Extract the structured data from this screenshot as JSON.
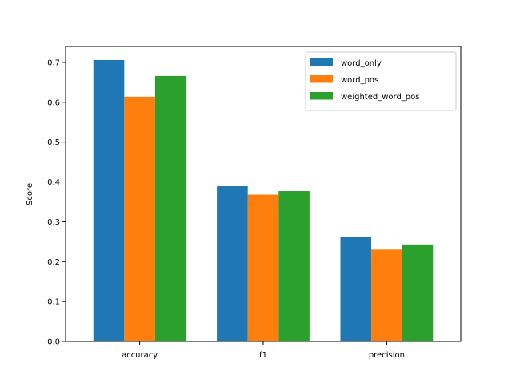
{
  "colors": {
    "series": [
      "#1f77b4",
      "#ff7f0e",
      "#2ca02c"
    ],
    "axes": "#000000",
    "background": "#ffffff",
    "legend_border": "#cccccc"
  },
  "chart_data": {
    "type": "bar",
    "title": "",
    "xlabel": "",
    "ylabel": "Score",
    "categories": [
      "accuracy",
      "f1",
      "precision"
    ],
    "series": [
      {
        "name": "word_only",
        "values": [
          0.706,
          0.391,
          0.261
        ]
      },
      {
        "name": "word_pos",
        "values": [
          0.614,
          0.368,
          0.23
        ]
      },
      {
        "name": "weighted_word_pos",
        "values": [
          0.666,
          0.377,
          0.243
        ]
      }
    ],
    "ylim": [
      0,
      0.74
    ],
    "yticks": [
      0.0,
      0.1,
      0.2,
      0.3,
      0.4,
      0.5,
      0.6,
      0.7
    ],
    "ytick_labels": [
      "0.0",
      "0.1",
      "0.2",
      "0.3",
      "0.4",
      "0.5",
      "0.6",
      "0.7"
    ],
    "grid": false,
    "legend_position": "top-right"
  }
}
